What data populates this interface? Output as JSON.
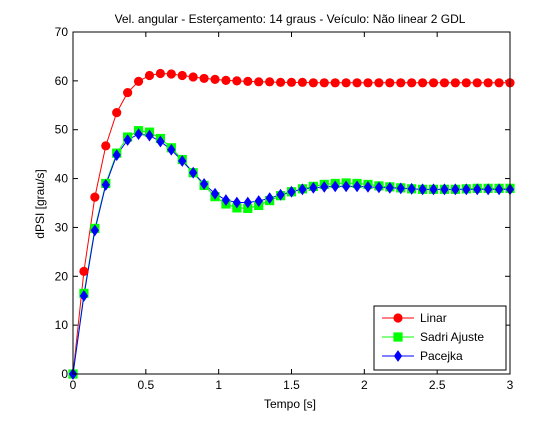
{
  "chart_data": {
    "type": "line",
    "title": "Vel. angular - Esterçamento: 14 graus - Veículo: Não linear 2 GDL",
    "xlabel": "Tempo [s]",
    "ylabel": "dPSI [grau/s]",
    "xlim": [
      0,
      3
    ],
    "ylim": [
      0,
      70
    ],
    "xticks": [
      0,
      0.5,
      1,
      1.5,
      2,
      2.5,
      3
    ],
    "xtick_labels": [
      "0",
      "0.5",
      "1",
      "1.5",
      "2",
      "2.5",
      "3"
    ],
    "yticks": [
      0,
      10,
      20,
      30,
      40,
      50,
      60,
      70
    ],
    "ytick_labels": [
      "0",
      "10",
      "20",
      "30",
      "40",
      "50",
      "60",
      "70"
    ],
    "grid": false,
    "legend_position": "bottom-right",
    "x": [
      0,
      0.075,
      0.15,
      0.225,
      0.3,
      0.375,
      0.45,
      0.525,
      0.6,
      0.675,
      0.75,
      0.825,
      0.9,
      0.975,
      1.05,
      1.125,
      1.2,
      1.275,
      1.35,
      1.425,
      1.5,
      1.575,
      1.65,
      1.725,
      1.8,
      1.875,
      1.95,
      2.025,
      2.1,
      2.175,
      2.25,
      2.325,
      2.4,
      2.475,
      2.55,
      2.625,
      2.7,
      2.775,
      2.85,
      2.925,
      3.0
    ],
    "series": [
      {
        "name": "Linar",
        "color": "#ff0000",
        "marker": "circle",
        "values": [
          0,
          21.0,
          36.2,
          46.7,
          53.5,
          57.6,
          59.9,
          61.1,
          61.5,
          61.4,
          61.1,
          60.8,
          60.5,
          60.3,
          60.1,
          60.0,
          59.9,
          59.8,
          59.8,
          59.7,
          59.7,
          59.7,
          59.6,
          59.6,
          59.6,
          59.6,
          59.6,
          59.6,
          59.6,
          59.6,
          59.6,
          59.6,
          59.6,
          59.6,
          59.6,
          59.6,
          59.6,
          59.6,
          59.6,
          59.6,
          59.6
        ]
      },
      {
        "name": "Sadri Ajuste",
        "color": "#00ff00",
        "marker": "square",
        "values": [
          0,
          16.5,
          29.8,
          39.0,
          45.2,
          48.5,
          49.8,
          49.5,
          48.2,
          46.3,
          43.9,
          41.2,
          38.6,
          36.3,
          34.8,
          34.0,
          33.9,
          34.5,
          35.5,
          36.5,
          37.3,
          37.9,
          38.4,
          38.8,
          39.0,
          39.1,
          39.0,
          38.8,
          38.5,
          38.3,
          38.1,
          37.9,
          37.8,
          37.8,
          37.8,
          37.8,
          37.9,
          38.0,
          38.0,
          38.0,
          38.0
        ]
      },
      {
        "name": "Pacejka",
        "color": "#0000ff",
        "marker": "diamond",
        "values": [
          0,
          16.0,
          29.4,
          38.7,
          44.8,
          47.9,
          49.1,
          48.8,
          47.6,
          45.9,
          43.6,
          41.2,
          38.9,
          36.9,
          35.6,
          35.1,
          35.1,
          35.4,
          36.0,
          36.7,
          37.3,
          37.8,
          38.1,
          38.3,
          38.4,
          38.4,
          38.4,
          38.3,
          38.2,
          38.1,
          38.0,
          37.9,
          37.8,
          37.8,
          37.8,
          37.8,
          37.8,
          37.8,
          37.8,
          37.8,
          37.8
        ]
      }
    ]
  }
}
